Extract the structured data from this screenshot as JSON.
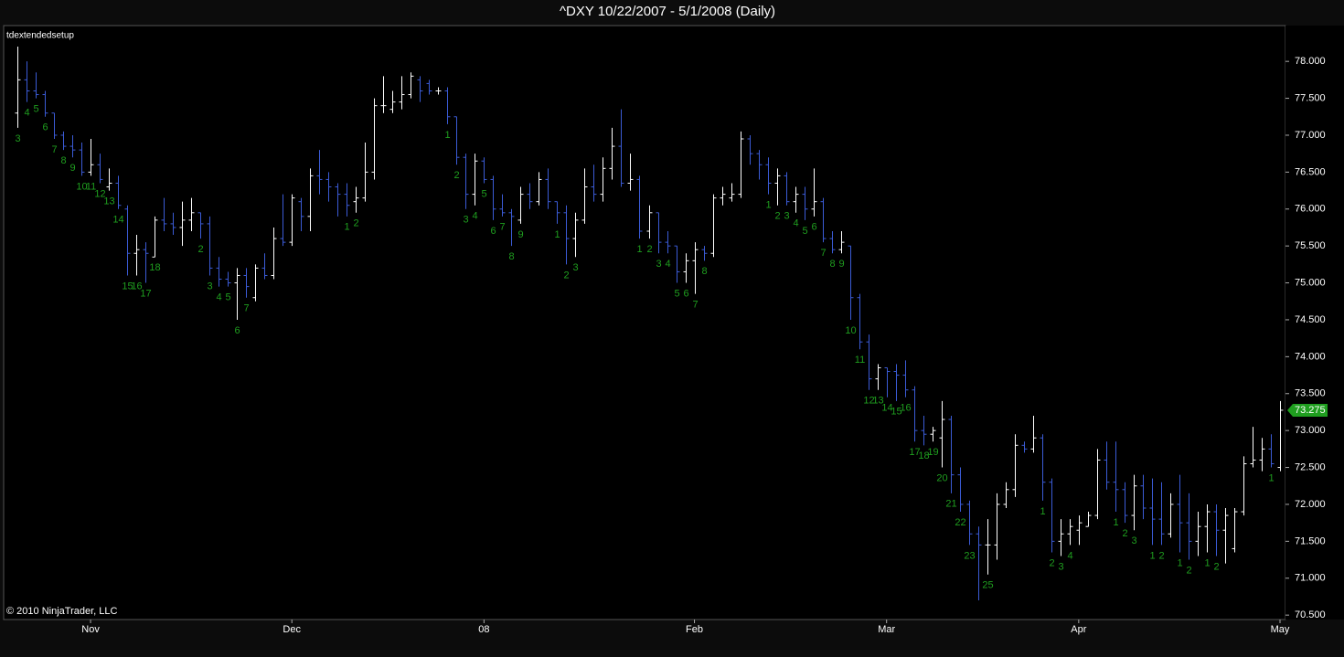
{
  "chart_data": {
    "type": "ohlc",
    "title": "^DXY  10/22/2007 - 5/1/2008 (Daily)",
    "indicator_label": "tdextendedsetup",
    "copyright": "© 2010 NinjaTrader, LLC",
    "categories": [
      null,
      null,
      null,
      null,
      null,
      null,
      null,
      null,
      "Nov",
      null,
      null,
      null,
      null,
      null,
      null,
      null,
      null,
      null,
      null,
      null,
      null,
      null,
      null,
      null,
      null,
      null,
      null,
      null,
      null,
      null,
      "Dec",
      null,
      null,
      null,
      null,
      null,
      null,
      null,
      null,
      null,
      null,
      null,
      null,
      null,
      null,
      null,
      null,
      null,
      null,
      null,
      null,
      "08",
      null,
      null,
      null,
      null,
      null,
      null,
      null,
      null,
      null,
      null,
      null,
      null,
      null,
      null,
      null,
      null,
      null,
      null,
      null,
      null,
      null,
      null,
      "Feb",
      null,
      null,
      null,
      null,
      null,
      null,
      null,
      null,
      null,
      null,
      null,
      null,
      null,
      null,
      null,
      null,
      null,
      null,
      null,
      null,
      "Mar",
      null,
      null,
      null,
      null,
      null,
      null,
      null,
      null,
      null,
      null,
      null,
      null,
      null,
      null,
      null,
      null,
      null,
      null,
      null,
      null,
      "Apr",
      null,
      null,
      null,
      null,
      null,
      null,
      null,
      null,
      null,
      null,
      null,
      null,
      null,
      null,
      null,
      null,
      null,
      null,
      null,
      null,
      null,
      "May"
    ],
    "open": [
      77.3,
      77.75,
      77.6,
      77.55,
      77.3,
      77.0,
      76.85,
      76.8,
      76.5,
      76.6,
      76.3,
      76.35,
      76.0,
      75.4,
      75.45,
      75.35,
      75.85,
      75.8,
      75.75,
      75.85,
      75.95,
      75.8,
      75.2,
      75.05,
      75.0,
      75.1,
      74.8,
      75.2,
      75.1,
      75.6,
      75.55,
      76.1,
      75.9,
      76.45,
      76.4,
      76.3,
      76.2,
      76.1,
      76.15,
      76.5,
      77.4,
      77.35,
      77.45,
      77.55,
      77.75,
      77.7,
      77.6,
      77.6,
      77.25,
      76.7,
      76.2,
      76.65,
      76.4,
      76.0,
      75.95,
      75.85,
      76.2,
      76.1,
      76.4,
      76.1,
      75.95,
      75.6,
      75.85,
      76.3,
      76.2,
      76.55,
      76.85,
      76.35,
      76.4,
      75.7,
      75.95,
      75.55,
      75.5,
      75.15,
      75.3,
      75.45,
      75.4,
      76.15,
      76.15,
      76.2,
      76.95,
      76.75,
      76.6,
      76.35,
      76.45,
      76.1,
      76.2,
      76.0,
      76.1,
      75.6,
      75.45,
      75.5,
      74.8,
      74.2,
      73.7,
      73.85,
      73.8,
      73.75,
      73.55,
      73.0,
      72.95,
      72.9,
      73.15,
      72.4,
      72.0,
      71.6,
      71.45,
      71.45,
      72.0,
      72.2,
      72.8,
      72.75,
      72.9,
      72.3,
      71.5,
      71.6,
      71.65,
      71.7,
      71.85,
      72.6,
      72.3,
      72.2,
      71.85,
      72.25,
      71.95,
      71.8,
      71.6,
      72.0,
      71.75,
      71.5,
      71.7,
      71.9,
      71.65,
      71.4,
      71.9,
      72.55,
      72.6,
      72.75,
      72.5
    ],
    "high": [
      78.2,
      78.0,
      77.85,
      77.6,
      77.3,
      77.05,
      77.0,
      76.9,
      76.95,
      76.75,
      76.55,
      76.45,
      76.05,
      75.65,
      75.55,
      75.9,
      76.15,
      75.95,
      76.1,
      76.15,
      75.95,
      75.9,
      75.35,
      75.15,
      75.2,
      75.2,
      75.25,
      75.4,
      75.75,
      76.2,
      76.2,
      76.15,
      76.55,
      76.8,
      76.5,
      76.35,
      76.35,
      76.3,
      76.9,
      77.5,
      77.8,
      77.6,
      77.8,
      77.85,
      77.8,
      77.75,
      77.65,
      77.65,
      77.25,
      76.75,
      76.75,
      76.7,
      76.45,
      76.2,
      76.0,
      76.3,
      76.35,
      76.5,
      76.55,
      76.1,
      76.05,
      75.95,
      76.55,
      76.6,
      76.7,
      77.1,
      77.35,
      76.75,
      76.45,
      76.05,
      75.95,
      75.7,
      75.5,
      75.4,
      75.55,
      75.5,
      76.2,
      76.3,
      76.35,
      77.05,
      77.0,
      76.8,
      76.7,
      76.55,
      76.5,
      76.3,
      76.3,
      76.55,
      76.15,
      75.7,
      75.7,
      75.5,
      74.85,
      74.3,
      73.9,
      73.85,
      73.9,
      73.95,
      73.6,
      73.2,
      73.05,
      73.4,
      73.2,
      72.5,
      72.05,
      71.7,
      71.8,
      72.15,
      72.3,
      72.95,
      72.85,
      73.2,
      72.95,
      72.35,
      71.8,
      71.8,
      71.85,
      71.9,
      72.75,
      72.85,
      72.85,
      72.3,
      72.4,
      72.4,
      72.35,
      72.3,
      72.15,
      72.4,
      72.15,
      71.9,
      72.0,
      72.0,
      71.95,
      71.95,
      72.65,
      73.05,
      72.9,
      72.95,
      73.4
    ],
    "low": [
      77.1,
      77.45,
      77.5,
      77.25,
      76.95,
      76.8,
      76.7,
      76.45,
      76.45,
      76.35,
      76.25,
      76.0,
      75.1,
      75.1,
      75.0,
      75.35,
      75.7,
      75.65,
      75.5,
      75.7,
      75.6,
      75.1,
      74.95,
      74.95,
      74.5,
      74.8,
      74.75,
      75.05,
      75.05,
      75.5,
      75.5,
      75.7,
      75.7,
      76.2,
      76.1,
      75.9,
      75.9,
      75.95,
      76.1,
      76.4,
      77.3,
      77.3,
      77.35,
      77.5,
      77.45,
      77.55,
      77.55,
      77.15,
      76.6,
      76.0,
      76.05,
      76.35,
      75.85,
      75.9,
      75.5,
      75.8,
      76.0,
      76.05,
      76.0,
      75.8,
      75.25,
      75.35,
      75.8,
      76.1,
      76.1,
      76.4,
      76.3,
      76.25,
      75.6,
      75.6,
      75.4,
      75.4,
      75.0,
      75.0,
      74.85,
      75.3,
      75.35,
      76.05,
      76.1,
      76.15,
      76.6,
      76.4,
      76.2,
      76.05,
      76.05,
      75.95,
      75.85,
      75.9,
      75.55,
      75.4,
      75.4,
      74.5,
      74.1,
      73.55,
      73.55,
      73.45,
      73.4,
      73.45,
      72.85,
      72.8,
      72.85,
      72.5,
      72.15,
      71.9,
      71.45,
      70.7,
      71.05,
      71.25,
      71.95,
      72.1,
      72.7,
      72.7,
      72.05,
      71.35,
      71.3,
      71.45,
      71.45,
      71.7,
      71.8,
      72.2,
      71.9,
      71.75,
      71.65,
      71.8,
      71.45,
      71.45,
      71.55,
      71.35,
      71.25,
      71.3,
      71.35,
      71.3,
      71.2,
      71.35,
      71.85,
      72.5,
      72.45,
      72.5,
      72.45
    ],
    "close": [
      77.75,
      77.6,
      77.55,
      77.3,
      77.0,
      76.85,
      76.8,
      76.5,
      76.6,
      76.4,
      76.35,
      76.05,
      75.4,
      75.45,
      75.4,
      75.85,
      75.8,
      75.75,
      75.85,
      75.95,
      75.8,
      75.2,
      75.05,
      75.0,
      75.1,
      74.95,
      75.2,
      75.1,
      75.6,
      75.55,
      76.15,
      75.9,
      76.45,
      76.4,
      76.3,
      76.2,
      76.05,
      76.15,
      76.5,
      77.4,
      77.4,
      77.45,
      77.55,
      77.8,
      77.6,
      77.6,
      77.6,
      77.25,
      76.7,
      76.2,
      76.65,
      76.4,
      76.0,
      75.95,
      75.9,
      76.2,
      76.1,
      76.4,
      76.1,
      75.95,
      75.6,
      75.85,
      76.3,
      76.2,
      76.55,
      76.85,
      76.35,
      76.4,
      75.7,
      75.95,
      75.55,
      75.5,
      75.15,
      75.3,
      75.45,
      75.4,
      76.15,
      76.2,
      76.2,
      76.95,
      76.75,
      76.6,
      76.35,
      76.45,
      76.1,
      76.2,
      76.0,
      76.1,
      75.6,
      75.45,
      75.55,
      74.8,
      74.2,
      73.7,
      73.85,
      73.8,
      73.75,
      73.55,
      73.0,
      72.95,
      73.0,
      73.15,
      72.4,
      72.0,
      71.6,
      71.45,
      71.45,
      72.0,
      72.2,
      72.8,
      72.75,
      72.9,
      72.3,
      71.5,
      71.6,
      71.7,
      71.75,
      71.85,
      72.6,
      72.3,
      72.2,
      71.85,
      72.25,
      71.95,
      71.8,
      71.6,
      72.0,
      71.75,
      71.5,
      71.7,
      71.9,
      71.65,
      71.85,
      71.9,
      72.55,
      72.6,
      72.75,
      72.55,
      73.275
    ],
    "counts": [
      3,
      4,
      5,
      6,
      7,
      8,
      9,
      10,
      11,
      12,
      13,
      14,
      15,
      16,
      17,
      18,
      null,
      null,
      null,
      null,
      2,
      3,
      4,
      5,
      6,
      7,
      null,
      null,
      null,
      null,
      null,
      null,
      null,
      null,
      null,
      null,
      1,
      2,
      null,
      null,
      null,
      null,
      null,
      null,
      null,
      null,
      null,
      1,
      2,
      3,
      4,
      5,
      6,
      7,
      8,
      9,
      null,
      null,
      null,
      1,
      2,
      3,
      null,
      null,
      null,
      null,
      null,
      null,
      1,
      2,
      3,
      4,
      5,
      6,
      7,
      8,
      null,
      null,
      null,
      null,
      null,
      null,
      1,
      2,
      3,
      4,
      5,
      6,
      7,
      8,
      9,
      10,
      11,
      12,
      13,
      14,
      15,
      16,
      17,
      18,
      19,
      20,
      21,
      22,
      23,
      null,
      25,
      null,
      null,
      null,
      null,
      null,
      1,
      2,
      3,
      4,
      null,
      null,
      null,
      null,
      1,
      2,
      3,
      null,
      1,
      2,
      null,
      1,
      2,
      null,
      1,
      2,
      null,
      null,
      null,
      null,
      null,
      1,
      null
    ],
    "up_color": "#ffffff",
    "down_color": "#3b5bd6",
    "count_color": "#1f9e1f",
    "last_price": 73.275,
    "last_price_color": "#1f9e1f",
    "ylim": [
      70.44,
      78.46
    ],
    "yticks": [
      {
        "value": 70.5,
        "label": "70.500"
      },
      {
        "value": 71,
        "label": "71.000"
      },
      {
        "value": 71.5,
        "label": "71.500"
      },
      {
        "value": 72,
        "label": "72.000"
      },
      {
        "value": 72.5,
        "label": "72.500"
      },
      {
        "value": 73,
        "label": "73.000"
      },
      {
        "value": 73.5,
        "label": "73.500"
      },
      {
        "value": 74,
        "label": "74.000"
      },
      {
        "value": 74.5,
        "label": "74.500"
      },
      {
        "value": 75,
        "label": "75.000"
      },
      {
        "value": 75.5,
        "label": "75.500"
      },
      {
        "value": 76,
        "label": "76.000"
      },
      {
        "value": 76.5,
        "label": "76.500"
      },
      {
        "value": 77,
        "label": "77.000"
      },
      {
        "value": 77.5,
        "label": "77.500"
      },
      {
        "value": 78,
        "label": "78.000"
      }
    ]
  }
}
